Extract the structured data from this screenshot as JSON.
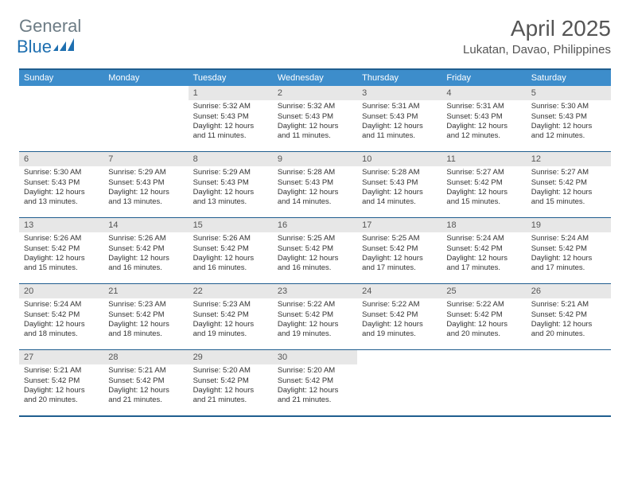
{
  "logo": {
    "word1": "General",
    "word2": "Blue"
  },
  "title": "April 2025",
  "location": "Lukatan, Davao, Philippines",
  "day_headers": [
    "Sunday",
    "Monday",
    "Tuesday",
    "Wednesday",
    "Thursday",
    "Friday",
    "Saturday"
  ],
  "colors": {
    "header_bg": "#3d8dcb",
    "border": "#205e8f",
    "num_bg": "#e7e7e7",
    "logo_word1": "#6d7c85",
    "logo_word2": "#1e6fb0"
  },
  "weeks": [
    [
      {
        "day": "",
        "sunrise": "",
        "sunset": "",
        "daylight": ""
      },
      {
        "day": "",
        "sunrise": "",
        "sunset": "",
        "daylight": ""
      },
      {
        "day": "1",
        "sunrise": "Sunrise: 5:32 AM",
        "sunset": "Sunset: 5:43 PM",
        "daylight": "Daylight: 12 hours and 11 minutes."
      },
      {
        "day": "2",
        "sunrise": "Sunrise: 5:32 AM",
        "sunset": "Sunset: 5:43 PM",
        "daylight": "Daylight: 12 hours and 11 minutes."
      },
      {
        "day": "3",
        "sunrise": "Sunrise: 5:31 AM",
        "sunset": "Sunset: 5:43 PM",
        "daylight": "Daylight: 12 hours and 11 minutes."
      },
      {
        "day": "4",
        "sunrise": "Sunrise: 5:31 AM",
        "sunset": "Sunset: 5:43 PM",
        "daylight": "Daylight: 12 hours and 12 minutes."
      },
      {
        "day": "5",
        "sunrise": "Sunrise: 5:30 AM",
        "sunset": "Sunset: 5:43 PM",
        "daylight": "Daylight: 12 hours and 12 minutes."
      }
    ],
    [
      {
        "day": "6",
        "sunrise": "Sunrise: 5:30 AM",
        "sunset": "Sunset: 5:43 PM",
        "daylight": "Daylight: 12 hours and 13 minutes."
      },
      {
        "day": "7",
        "sunrise": "Sunrise: 5:29 AM",
        "sunset": "Sunset: 5:43 PM",
        "daylight": "Daylight: 12 hours and 13 minutes."
      },
      {
        "day": "8",
        "sunrise": "Sunrise: 5:29 AM",
        "sunset": "Sunset: 5:43 PM",
        "daylight": "Daylight: 12 hours and 13 minutes."
      },
      {
        "day": "9",
        "sunrise": "Sunrise: 5:28 AM",
        "sunset": "Sunset: 5:43 PM",
        "daylight": "Daylight: 12 hours and 14 minutes."
      },
      {
        "day": "10",
        "sunrise": "Sunrise: 5:28 AM",
        "sunset": "Sunset: 5:43 PM",
        "daylight": "Daylight: 12 hours and 14 minutes."
      },
      {
        "day": "11",
        "sunrise": "Sunrise: 5:27 AM",
        "sunset": "Sunset: 5:42 PM",
        "daylight": "Daylight: 12 hours and 15 minutes."
      },
      {
        "day": "12",
        "sunrise": "Sunrise: 5:27 AM",
        "sunset": "Sunset: 5:42 PM",
        "daylight": "Daylight: 12 hours and 15 minutes."
      }
    ],
    [
      {
        "day": "13",
        "sunrise": "Sunrise: 5:26 AM",
        "sunset": "Sunset: 5:42 PM",
        "daylight": "Daylight: 12 hours and 15 minutes."
      },
      {
        "day": "14",
        "sunrise": "Sunrise: 5:26 AM",
        "sunset": "Sunset: 5:42 PM",
        "daylight": "Daylight: 12 hours and 16 minutes."
      },
      {
        "day": "15",
        "sunrise": "Sunrise: 5:26 AM",
        "sunset": "Sunset: 5:42 PM",
        "daylight": "Daylight: 12 hours and 16 minutes."
      },
      {
        "day": "16",
        "sunrise": "Sunrise: 5:25 AM",
        "sunset": "Sunset: 5:42 PM",
        "daylight": "Daylight: 12 hours and 16 minutes."
      },
      {
        "day": "17",
        "sunrise": "Sunrise: 5:25 AM",
        "sunset": "Sunset: 5:42 PM",
        "daylight": "Daylight: 12 hours and 17 minutes."
      },
      {
        "day": "18",
        "sunrise": "Sunrise: 5:24 AM",
        "sunset": "Sunset: 5:42 PM",
        "daylight": "Daylight: 12 hours and 17 minutes."
      },
      {
        "day": "19",
        "sunrise": "Sunrise: 5:24 AM",
        "sunset": "Sunset: 5:42 PM",
        "daylight": "Daylight: 12 hours and 17 minutes."
      }
    ],
    [
      {
        "day": "20",
        "sunrise": "Sunrise: 5:24 AM",
        "sunset": "Sunset: 5:42 PM",
        "daylight": "Daylight: 12 hours and 18 minutes."
      },
      {
        "day": "21",
        "sunrise": "Sunrise: 5:23 AM",
        "sunset": "Sunset: 5:42 PM",
        "daylight": "Daylight: 12 hours and 18 minutes."
      },
      {
        "day": "22",
        "sunrise": "Sunrise: 5:23 AM",
        "sunset": "Sunset: 5:42 PM",
        "daylight": "Daylight: 12 hours and 19 minutes."
      },
      {
        "day": "23",
        "sunrise": "Sunrise: 5:22 AM",
        "sunset": "Sunset: 5:42 PM",
        "daylight": "Daylight: 12 hours and 19 minutes."
      },
      {
        "day": "24",
        "sunrise": "Sunrise: 5:22 AM",
        "sunset": "Sunset: 5:42 PM",
        "daylight": "Daylight: 12 hours and 19 minutes."
      },
      {
        "day": "25",
        "sunrise": "Sunrise: 5:22 AM",
        "sunset": "Sunset: 5:42 PM",
        "daylight": "Daylight: 12 hours and 20 minutes."
      },
      {
        "day": "26",
        "sunrise": "Sunrise: 5:21 AM",
        "sunset": "Sunset: 5:42 PM",
        "daylight": "Daylight: 12 hours and 20 minutes."
      }
    ],
    [
      {
        "day": "27",
        "sunrise": "Sunrise: 5:21 AM",
        "sunset": "Sunset: 5:42 PM",
        "daylight": "Daylight: 12 hours and 20 minutes."
      },
      {
        "day": "28",
        "sunrise": "Sunrise: 5:21 AM",
        "sunset": "Sunset: 5:42 PM",
        "daylight": "Daylight: 12 hours and 21 minutes."
      },
      {
        "day": "29",
        "sunrise": "Sunrise: 5:20 AM",
        "sunset": "Sunset: 5:42 PM",
        "daylight": "Daylight: 12 hours and 21 minutes."
      },
      {
        "day": "30",
        "sunrise": "Sunrise: 5:20 AM",
        "sunset": "Sunset: 5:42 PM",
        "daylight": "Daylight: 12 hours and 21 minutes."
      },
      {
        "day": "",
        "sunrise": "",
        "sunset": "",
        "daylight": ""
      },
      {
        "day": "",
        "sunrise": "",
        "sunset": "",
        "daylight": ""
      },
      {
        "day": "",
        "sunrise": "",
        "sunset": "",
        "daylight": ""
      }
    ]
  ]
}
